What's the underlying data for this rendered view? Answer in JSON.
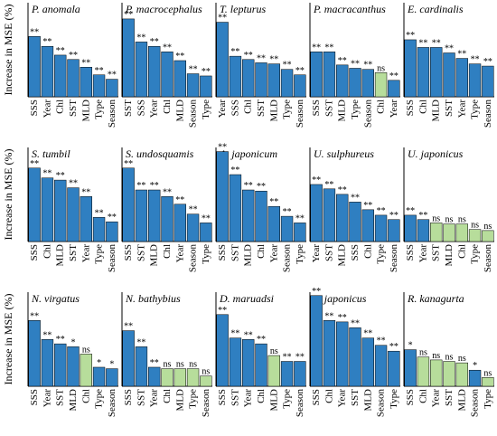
{
  "figure": {
    "ylabel": "Increase in MSE (%)"
  },
  "colors": {
    "significant": "#2f7fc1",
    "not_significant": "#b7dd9b",
    "axis": "#000000"
  },
  "chart_data": [
    {
      "type": "bar",
      "title": "P. anomala",
      "ylim": [
        0,
        80
      ],
      "categories": [
        "SSS",
        "Year",
        "Chl",
        "SST",
        "MLD",
        "Type",
        "Season"
      ],
      "values": [
        55,
        46,
        38,
        34,
        27,
        20,
        16
      ],
      "labels": [
        "**",
        "**",
        "**",
        "**",
        "**",
        "**",
        "**"
      ],
      "significant": [
        true,
        true,
        true,
        true,
        true,
        true,
        true
      ]
    },
    {
      "type": "bar",
      "title": "P. macrocephalus",
      "ylim": [
        0,
        80
      ],
      "categories": [
        "SST",
        "SSS",
        "Year",
        "Chl",
        "MLD",
        "Season",
        "Type"
      ],
      "values": [
        71,
        50,
        46,
        41,
        33,
        21,
        19
      ],
      "labels": [
        "**",
        "**",
        "**",
        "**",
        "**",
        "**",
        "**"
      ],
      "significant": [
        true,
        true,
        true,
        true,
        true,
        true,
        true
      ]
    },
    {
      "type": "bar",
      "title": "T. lepturus",
      "ylim": [
        0,
        80
      ],
      "categories": [
        "Year",
        "SSS",
        "Chl",
        "SST",
        "MLD",
        "Type",
        "Season"
      ],
      "values": [
        68,
        37,
        34,
        31,
        30,
        25,
        20
      ],
      "labels": [
        "**",
        "**",
        "**",
        "**",
        "**",
        "**",
        "**"
      ],
      "significant": [
        true,
        true,
        true,
        true,
        true,
        true,
        true
      ]
    },
    {
      "type": "bar",
      "title": "P. macracanthus",
      "ylim": [
        0,
        80
      ],
      "categories": [
        "SSS",
        "SST",
        "MLD",
        "Type",
        "Season",
        "Chl",
        "Year"
      ],
      "values": [
        41,
        41,
        29,
        26,
        25,
        22,
        15
      ],
      "labels": [
        "**",
        "**",
        "**",
        "**",
        "**",
        "ns",
        "**"
      ],
      "significant": [
        true,
        true,
        true,
        true,
        true,
        false,
        true
      ]
    },
    {
      "type": "bar",
      "title": "E. cardinalis",
      "ylim": [
        0,
        80
      ],
      "categories": [
        "SSS",
        "Chl",
        "MLD",
        "SST",
        "Year",
        "Type",
        "Season"
      ],
      "values": [
        52,
        45,
        45,
        40,
        35,
        30,
        28
      ],
      "labels": [
        "**",
        "**",
        "**",
        "**",
        "**",
        "**",
        "**"
      ],
      "significant": [
        true,
        true,
        true,
        true,
        true,
        true,
        true
      ]
    },
    {
      "type": "bar",
      "title": "S. tumbil",
      "ylim": [
        0,
        80
      ],
      "categories": [
        "SSS",
        "Chl",
        "MLD",
        "SST",
        "Year",
        "Type",
        "Season"
      ],
      "values": [
        67,
        58,
        56,
        49,
        41,
        22,
        18
      ],
      "labels": [
        "**",
        "**",
        "**",
        "**",
        "**",
        "**",
        "**"
      ],
      "significant": [
        true,
        true,
        true,
        true,
        true,
        true,
        true
      ]
    },
    {
      "type": "bar",
      "title": "S. undosquamis",
      "ylim": [
        0,
        80
      ],
      "categories": [
        "SSS",
        "SST",
        "MLD",
        "Chl",
        "Year",
        "Season",
        "Type"
      ],
      "values": [
        67,
        47,
        47,
        41,
        34,
        25,
        17
      ],
      "labels": [
        "**",
        "**",
        "**",
        "**",
        "**",
        "**",
        "**"
      ],
      "significant": [
        true,
        true,
        true,
        true,
        true,
        true,
        true
      ]
    },
    {
      "type": "bar",
      "title": "A. japonicum",
      "ylim": [
        0,
        80
      ],
      "categories": [
        "SSS",
        "SST",
        "MLD",
        "Chl",
        "Year",
        "Season",
        "Type"
      ],
      "values": [
        82,
        61,
        47,
        46,
        32,
        23,
        17
      ],
      "labels": [
        "**",
        "**",
        "**",
        "**",
        "**",
        "**",
        "**"
      ],
      "significant": [
        true,
        true,
        true,
        true,
        true,
        true,
        true
      ]
    },
    {
      "type": "bar",
      "title": "U. sulphureus",
      "ylim": [
        0,
        80
      ],
      "categories": [
        "Year",
        "SST",
        "MLD",
        "SSS",
        "Chl",
        "Type",
        "Season"
      ],
      "values": [
        52,
        48,
        43,
        36,
        29,
        24,
        20
      ],
      "labels": [
        "**",
        "**",
        "**",
        "**",
        "**",
        "**",
        "**"
      ],
      "significant": [
        true,
        true,
        true,
        true,
        true,
        true,
        true
      ]
    },
    {
      "type": "bar",
      "title": "U. japonicus",
      "ylim": [
        0,
        80
      ],
      "categories": [
        "SSS",
        "Year",
        "SST",
        "MLD",
        "Chl",
        "Type",
        "Season"
      ],
      "values": [
        24,
        20,
        17,
        16,
        16,
        11,
        10
      ],
      "labels": [
        "**",
        "**",
        "ns",
        "ns",
        "ns",
        "ns",
        "ns"
      ],
      "significant": [
        true,
        true,
        false,
        false,
        false,
        false,
        false
      ]
    },
    {
      "type": "bar",
      "title": "N. virgatus",
      "ylim": [
        0,
        60
      ],
      "categories": [
        "SSS",
        "Year",
        "SST",
        "MLD",
        "Chl",
        "Type",
        "Season"
      ],
      "values": [
        45,
        32,
        29,
        27,
        22,
        13,
        12
      ],
      "labels": [
        "**",
        "**",
        "**",
        "*",
        "ns",
        "*",
        "*"
      ],
      "significant": [
        true,
        true,
        true,
        true,
        false,
        true,
        true
      ]
    },
    {
      "type": "bar",
      "title": "N. bathybius",
      "ylim": [
        0,
        60
      ],
      "categories": [
        "SSS",
        "SST",
        "Year",
        "Chl",
        "MLD",
        "Type",
        "Season"
      ],
      "values": [
        38,
        27,
        13,
        12,
        12,
        12,
        7
      ],
      "labels": [
        "**",
        "**",
        "**",
        "ns",
        "ns",
        "ns",
        "ns"
      ],
      "significant": [
        true,
        true,
        true,
        false,
        false,
        false,
        false
      ]
    },
    {
      "type": "bar",
      "title": "D. maruadsi",
      "ylim": [
        0,
        60
      ],
      "categories": [
        "SSS",
        "SST",
        "Year",
        "Chl",
        "MLD",
        "Type",
        "Season"
      ],
      "values": [
        49,
        33,
        32,
        29,
        21,
        17,
        17
      ],
      "labels": [
        "**",
        "**",
        "**",
        "**",
        "ns",
        "**",
        "**"
      ],
      "significant": [
        true,
        true,
        true,
        true,
        false,
        true,
        true
      ]
    },
    {
      "type": "bar",
      "title": "T. japonicus",
      "ylim": [
        0,
        60
      ],
      "categories": [
        "SSS",
        "Chl",
        "Year",
        "SST",
        "MLD",
        "Season",
        "Type"
      ],
      "values": [
        62,
        45,
        44,
        40,
        33,
        28,
        24
      ],
      "labels": [
        "**",
        "**",
        "**",
        "**",
        "**",
        "**",
        "**"
      ],
      "significant": [
        true,
        true,
        true,
        true,
        true,
        true,
        true
      ]
    },
    {
      "type": "bar",
      "title": "R. kanagurta",
      "ylim": [
        0,
        60
      ],
      "categories": [
        "SSS",
        "Chl",
        "Year",
        "SST",
        "MLD",
        "Season",
        "Type"
      ],
      "values": [
        25,
        20,
        18,
        17,
        16,
        11,
        6
      ],
      "labels": [
        "*",
        "ns",
        "ns",
        "ns",
        "ns",
        "*",
        "ns"
      ],
      "significant": [
        true,
        false,
        false,
        false,
        false,
        true,
        false
      ]
    }
  ]
}
